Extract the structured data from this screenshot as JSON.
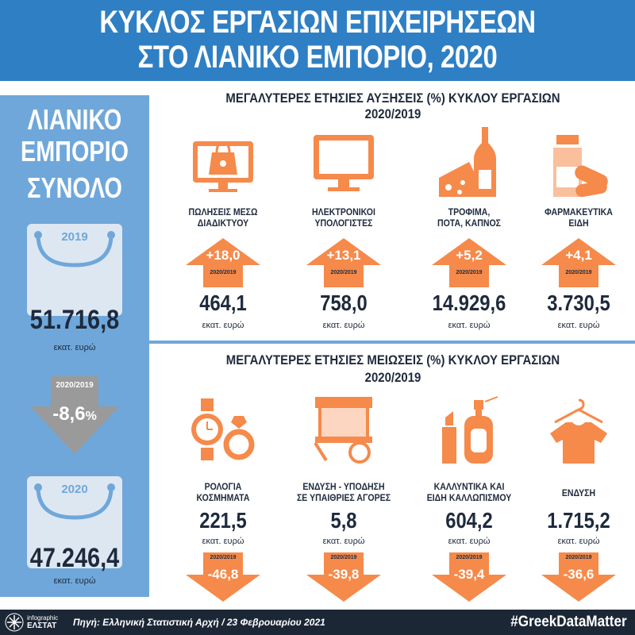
{
  "header": {
    "line1": "ΚΥΚΛΟΣ ΕΡΓΑΣΙΩΝ ΕΠΙΧΕΙΡΗΣΕΩΝ",
    "line2": "ΣΤΟ ΛΙΑΝΙΚΟ ΕΜΠΟΡΙΟ, 2020"
  },
  "left": {
    "title1": "ΛΙΑΝΙΚΟ",
    "title2": "ΕΜΠΟΡΙΟ",
    "title3": "ΣΥΝΟΛΟ",
    "year_from": "2019",
    "value_from": "51.716,8",
    "unit_from": "εκατ. ευρώ",
    "change_period": "2020/2019",
    "change_value": "-8,6",
    "change_unit": "%",
    "year_to": "2020",
    "value_to": "47.246,4",
    "unit_to": "εκατ. ευρώ"
  },
  "increases": {
    "title1": "ΜΕΓΑΛΥΤΕΡΕΣ ΕΤΗΣΙΕΣ ΑΥΞΗΣΕΙΣ (%) ΚΥΚΛΟΥ ΕΡΓΑΣΙΩΝ",
    "title2": "2020/2019",
    "items": [
      {
        "label1": "ΠΩΛΗΣΕΙΣ ΜΕΣΩ",
        "label2": "ΔΙΑΔΙΚΤΥΟΥ",
        "pct": "+18,0",
        "period": "2020/2019",
        "value": "464,1",
        "unit": "εκατ. ευρώ",
        "icon": "online-shopping-icon"
      },
      {
        "label1": "ΗΛΕΚΤΡΟΝΙΚΟΙ",
        "label2": "ΥΠΟΛΟΓΙΣΤΕΣ",
        "pct": "+13,1",
        "period": "2020/2019",
        "value": "758,0",
        "unit": "εκατ. ευρώ",
        "icon": "computer-monitor-icon"
      },
      {
        "label1": "ΤΡΟΦΙΜΑ,",
        "label2": "ΠΟΤΑ, ΚΑΠΝΟΣ",
        "pct": "+5,2",
        "period": "2020/2019",
        "value": "14.929,6",
        "unit": "εκατ. ευρώ",
        "icon": "cheese-bottle-icon"
      },
      {
        "label1": "ΦΑΡΜΑΚΕΥΤΙΚΑ",
        "label2": "ΕΙΔΗ",
        "pct": "+4,1",
        "period": "2020/2019",
        "value": "3.730,5",
        "unit": "εκατ. ευρώ",
        "icon": "pills-bottle-icon"
      }
    ]
  },
  "decreases": {
    "title1": "ΜΕΓΑΛΥΤΕΡΕΣ ΕΤΗΣΙΕΣ ΜΕΙΩΣΕΙΣ (%) ΚΥΚΛΟΥ ΕΡΓΑΣΙΩΝ",
    "title2": "2020/2019",
    "items": [
      {
        "label1": "ΡΟΛΟΓΙΑ",
        "label2": "ΚΟΣΜΗΜΑΤΑ",
        "pct": "-46,8",
        "period": "2020/2019",
        "value": "221,5",
        "unit": "εκατ. ευρώ",
        "icon": "watch-ring-icon"
      },
      {
        "label1": "ΕΝΔΥΣΗ - ΥΠΟΔΗΣΗ",
        "label2": "ΣΕ ΥΠΑΙΘΡΙΕΣ ΑΓΟΡΕΣ",
        "pct": "-39,8",
        "period": "2020/2019",
        "value": "5,8",
        "unit": "εκατ. ευρώ",
        "icon": "market-stall-icon"
      },
      {
        "label1": "ΚΑΛΛΥΝΤΙΚΑ ΚΑΙ",
        "label2": "ΕΙΔΗ ΚΑΛΛΩΠΙΣΜΟΥ",
        "pct": "-39,4",
        "period": "2020/2019",
        "value": "604,2",
        "unit": "εκατ. ευρώ",
        "icon": "lipstick-perfume-icon"
      },
      {
        "label1": "ΕΝΔΥΣΗ",
        "label2": "",
        "pct": "-36,6",
        "period": "2020/2019",
        "value": "1.715,2",
        "unit": "εκατ. ευρώ",
        "icon": "tshirt-hanger-icon"
      }
    ]
  },
  "footer": {
    "logo_top": "infographic",
    "logo_bottom": "ΕΛΣΤΑΤ",
    "source": "Πηγή: Ελληνική Στατιστική Αρχή  / 23 Φεβρουαρίου 2021",
    "hashtag": "#GreekDataMatter"
  },
  "colors": {
    "header_blue": "#2f7fc4",
    "left_panel": "#6fa7da",
    "accent_orange": "#f58a4b",
    "dark": "#1e2a3c",
    "grey_arrow": "#9a9a9a"
  }
}
